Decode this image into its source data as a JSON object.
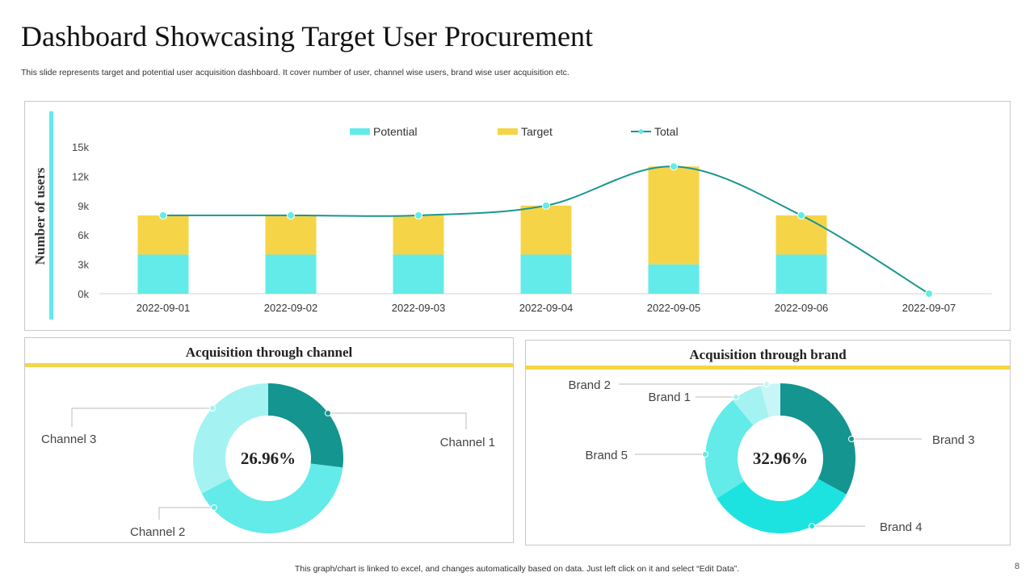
{
  "title": "Dashboard Showcasing Target User Procurement",
  "subtitle": "This slide represents target and potential user acquisition dashboard. It cover number of user, channel wise users, brand wise user acquisition etc.",
  "footer": "This graph/chart is linked to excel,  and changes automatically based on data. Just left click on it and select “Edit Data”.",
  "page_number": "8",
  "colors": {
    "potential": "#62ebe8",
    "target": "#f5d547",
    "total": "#1a9690",
    "accent_bar": "#62ebe8",
    "divider": "#f5d547"
  },
  "chart_data": [
    {
      "type": "bar",
      "stacked": true,
      "ylabel": "Number of users",
      "ylim": [
        0,
        15000
      ],
      "yticks": [
        "0k",
        "3k",
        "6k",
        "9k",
        "12k",
        "15k"
      ],
      "categories": [
        "2022-09-01",
        "2022-09-02",
        "2022-09-03",
        "2022-09-04",
        "2022-09-05",
        "2022-09-06",
        "2022-09-07"
      ],
      "legend_position": "top",
      "series": [
        {
          "name": "Potential",
          "type": "bar",
          "values": [
            4000,
            4000,
            4000,
            4000,
            3000,
            4000,
            0
          ]
        },
        {
          "name": "Target",
          "type": "bar",
          "values": [
            4000,
            4000,
            4000,
            5000,
            10000,
            4000,
            0
          ]
        },
        {
          "name": "Total",
          "type": "line",
          "smooth": true,
          "values": [
            8000,
            8000,
            8000,
            9000,
            13000,
            8000,
            0
          ]
        }
      ]
    },
    {
      "type": "pie",
      "donut": true,
      "title": "Acquisition through channel",
      "center_label": "26.96%",
      "labels": [
        "Channel 1",
        "Channel 2",
        "Channel 3"
      ],
      "values": [
        26.96,
        40.3,
        32.74
      ],
      "colors": [
        "#14958f",
        "#62ebe8",
        "#a5f2f2"
      ]
    },
    {
      "type": "pie",
      "donut": true,
      "title": "Acquisition through brand",
      "center_label": "32.96%",
      "labels": [
        "Brand 3",
        "Brand 4",
        "Brand 5",
        "Brand 1",
        "Brand 2"
      ],
      "values": [
        32.96,
        33.1,
        23.0,
        6.7,
        4.24
      ],
      "colors": [
        "#14958f",
        "#1de3e0",
        "#62ebe8",
        "#a5f2f2",
        "#c8f6f6"
      ]
    }
  ]
}
